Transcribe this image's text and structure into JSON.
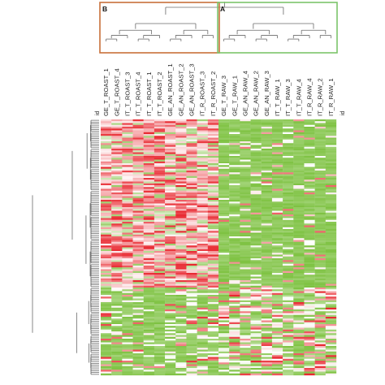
{
  "chart_data": {
    "type": "heatmap",
    "title": "",
    "xlabel": "",
    "ylabel": "",
    "row_axis_label": "id",
    "column_axis_label": "id",
    "columns": [
      "GE_T_ROAST_1",
      "GE_T_ROAST_4",
      "IT_T_ROAST_3",
      "IT_T_ROAST_4",
      "IT_T_ROAST_1",
      "IT_T_ROAST_2",
      "GE_AN_ROAST_1",
      "GE_AN_ROAST_2",
      "GE_AN_ROAST_3",
      "IT_R_ROAST_3",
      "IT_R_ROAST_2",
      "GE_T_RAW_3",
      "GE_T_RAW_1",
      "GE_AN_RAW_4",
      "GE_AN_RAW_2",
      "GE_AN_RAW_3",
      "IT_T_RAW_1",
      "IT_T_RAW_3",
      "IT_T_RAW_4",
      "IT_R_RAW_4",
      "IT_R_RAW_2",
      "IT_R_RAW_1"
    ],
    "column_clusters": [
      {
        "label": "B",
        "columns": [
          0,
          10
        ],
        "color": "#c8703a"
      },
      {
        "label": "A",
        "columns": [
          11,
          21
        ],
        "color": "#7cc46a"
      }
    ],
    "row_count": 140,
    "color_scale": {
      "low": "#7ec242",
      "mid": "#ffffff",
      "high": "#e8262e"
    }
  }
}
